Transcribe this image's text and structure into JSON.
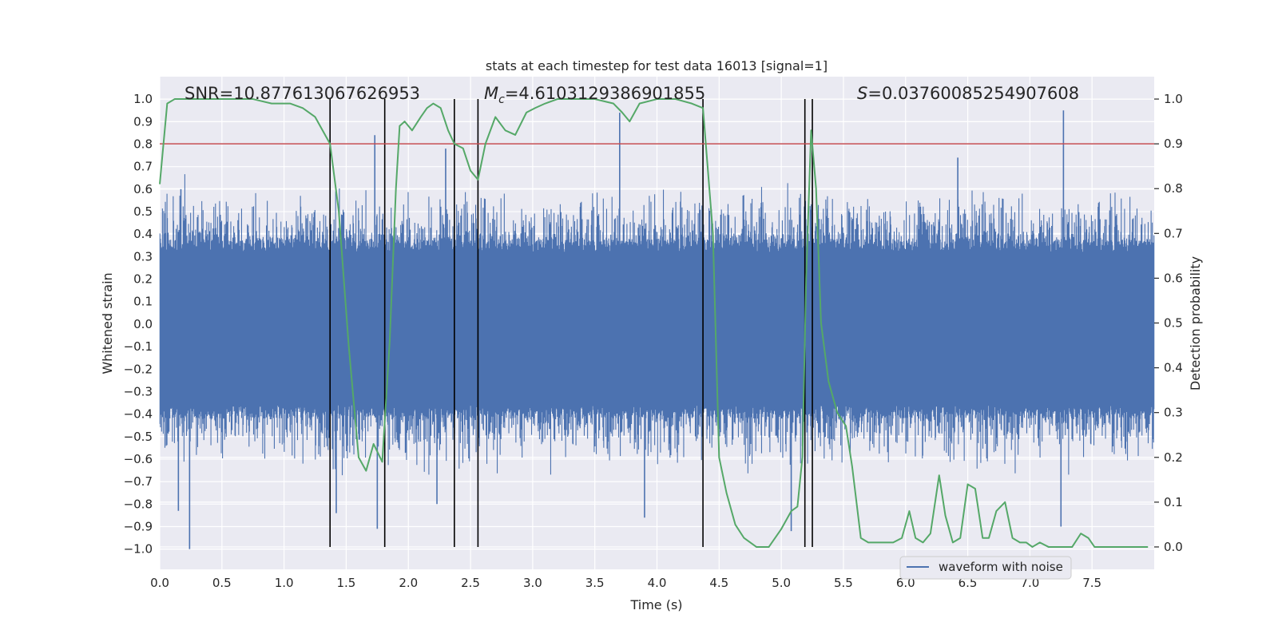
{
  "chart_data": {
    "type": "line",
    "title": "stats at each timestep for test data 16013 [signal=1]",
    "xlabel": "Time (s)",
    "ylabel_left": "Whitened strain",
    "ylabel_right": "Detection probability",
    "xlim": [
      0.0,
      8.0
    ],
    "ylim_left": [
      -1.09,
      1.1
    ],
    "ylim_right": [
      -0.05,
      1.05
    ],
    "x_ticks": [
      "0.0",
      "0.5",
      "1.0",
      "1.5",
      "2.0",
      "2.5",
      "3.0",
      "3.5",
      "4.0",
      "4.5",
      "5.0",
      "5.5",
      "6.0",
      "6.5",
      "7.0",
      "7.5"
    ],
    "x_tick_values": [
      0.0,
      0.5,
      1.0,
      1.5,
      2.0,
      2.5,
      3.0,
      3.5,
      4.0,
      4.5,
      5.0,
      5.5,
      6.0,
      6.5,
      7.0,
      7.5
    ],
    "y_left_ticks": [
      "1.0",
      "0.9",
      "0.8",
      "0.7",
      "0.6",
      "0.5",
      "0.4",
      "0.3",
      "0.2",
      "0.1",
      "0.0",
      "−0.1",
      "−0.2",
      "−0.3",
      "−0.4",
      "−0.5",
      "−0.6",
      "−0.7",
      "−0.8",
      "−0.9",
      "−1.0"
    ],
    "y_left_tick_values": [
      1.0,
      0.9,
      0.8,
      0.7,
      0.6,
      0.5,
      0.4,
      0.3,
      0.2,
      0.1,
      0.0,
      -0.1,
      -0.2,
      -0.3,
      -0.4,
      -0.5,
      -0.6,
      -0.7,
      -0.8,
      -0.9,
      -1.0
    ],
    "y_right_ticks": [
      "1.0",
      "0.9",
      "0.8",
      "0.7",
      "0.6",
      "0.5",
      "0.4",
      "0.3",
      "0.2",
      "0.1",
      "0.0"
    ],
    "y_right_tick_values": [
      1.0,
      0.9,
      0.8,
      0.7,
      0.6,
      0.5,
      0.4,
      0.3,
      0.2,
      0.1,
      0.0
    ],
    "annotations": {
      "snr": "SNR=10.877613067626953",
      "mc_symbol": "M",
      "mc_sub": "c",
      "mc_value": "=4.6103129386901855",
      "s_symbol": "S",
      "s_value": "=0.03760085254907608"
    },
    "threshold": {
      "value": 0.9,
      "axis": "right",
      "color": "#c44e52"
    },
    "vertical_lines": [
      1.37,
      1.81,
      2.37,
      2.56,
      4.37,
      5.19,
      5.25
    ],
    "series": [
      {
        "name": "waveform with noise",
        "axis": "left",
        "color": "#4c72b0",
        "kind": "noise-band",
        "typical_range": [
          -0.42,
          0.38
        ],
        "peaks": [
          {
            "x": 0.24,
            "y": -1.0
          },
          {
            "x": 0.15,
            "y": -0.83
          },
          {
            "x": 0.17,
            "y": 0.6
          },
          {
            "x": 1.42,
            "y": -0.84
          },
          {
            "x": 1.73,
            "y": 0.84
          },
          {
            "x": 1.75,
            "y": -0.91
          },
          {
            "x": 2.3,
            "y": 0.78
          },
          {
            "x": 3.7,
            "y": 0.94
          },
          {
            "x": 3.9,
            "y": -0.86
          },
          {
            "x": 5.08,
            "y": -0.92
          },
          {
            "x": 7.27,
            "y": 0.95
          },
          {
            "x": 7.25,
            "y": -0.9
          },
          {
            "x": 6.42,
            "y": 0.74
          },
          {
            "x": 2.23,
            "y": -0.8
          }
        ]
      },
      {
        "name": "detection probability",
        "axis": "right",
        "color": "#55a868",
        "x": [
          0.0,
          0.06,
          0.12,
          0.2,
          0.3,
          0.45,
          0.6,
          0.75,
          0.9,
          0.95,
          1.05,
          1.15,
          1.25,
          1.37,
          1.44,
          1.52,
          1.6,
          1.66,
          1.72,
          1.79,
          1.85,
          1.9,
          1.93,
          1.97,
          2.03,
          2.1,
          2.15,
          2.2,
          2.26,
          2.32,
          2.37,
          2.44,
          2.5,
          2.56,
          2.62,
          2.7,
          2.78,
          2.86,
          2.95,
          3.02,
          3.1,
          3.2,
          3.5,
          3.65,
          3.72,
          3.78,
          3.86,
          4.0,
          4.15,
          4.28,
          4.37,
          4.45,
          4.5,
          4.56,
          4.63,
          4.7,
          4.8,
          4.9,
          5.0,
          5.08,
          5.13,
          5.17,
          5.2,
          5.24,
          5.28,
          5.32,
          5.38,
          5.45,
          5.52,
          5.57,
          5.64,
          5.7,
          5.76,
          5.82,
          5.9,
          5.97,
          6.03,
          6.08,
          6.14,
          6.2,
          6.27,
          6.32,
          6.38,
          6.44,
          6.5,
          6.56,
          6.62,
          6.67,
          6.73,
          6.8,
          6.86,
          6.92,
          6.97,
          7.02,
          7.08,
          7.15,
          7.2,
          7.28,
          7.34,
          7.41,
          7.47,
          7.52,
          7.58,
          7.7,
          7.85,
          7.95
        ],
        "y": [
          0.81,
          0.99,
          1.0,
          1.0,
          1.0,
          1.0,
          1.0,
          1.0,
          0.99,
          0.99,
          0.99,
          0.98,
          0.96,
          0.9,
          0.75,
          0.45,
          0.2,
          0.17,
          0.23,
          0.19,
          0.46,
          0.8,
          0.94,
          0.95,
          0.93,
          0.96,
          0.98,
          0.99,
          0.98,
          0.93,
          0.9,
          0.89,
          0.84,
          0.82,
          0.9,
          0.96,
          0.93,
          0.92,
          0.97,
          0.98,
          0.99,
          1.0,
          1.0,
          0.99,
          0.97,
          0.95,
          0.99,
          1.0,
          1.0,
          0.99,
          0.98,
          0.7,
          0.2,
          0.12,
          0.05,
          0.02,
          0.0,
          0.0,
          0.04,
          0.08,
          0.09,
          0.2,
          0.6,
          0.93,
          0.8,
          0.5,
          0.37,
          0.3,
          0.27,
          0.18,
          0.02,
          0.01,
          0.01,
          0.01,
          0.01,
          0.02,
          0.08,
          0.02,
          0.01,
          0.03,
          0.16,
          0.07,
          0.01,
          0.02,
          0.14,
          0.13,
          0.02,
          0.02,
          0.08,
          0.1,
          0.02,
          0.01,
          0.01,
          0.0,
          0.01,
          0.0,
          0.0,
          0.0,
          0.0,
          0.03,
          0.02,
          0.0,
          0.0,
          0.0,
          0.0,
          0.0
        ]
      }
    ],
    "legend": {
      "location": "lower-right",
      "entries": [
        "waveform with noise"
      ]
    },
    "grid": true
  }
}
